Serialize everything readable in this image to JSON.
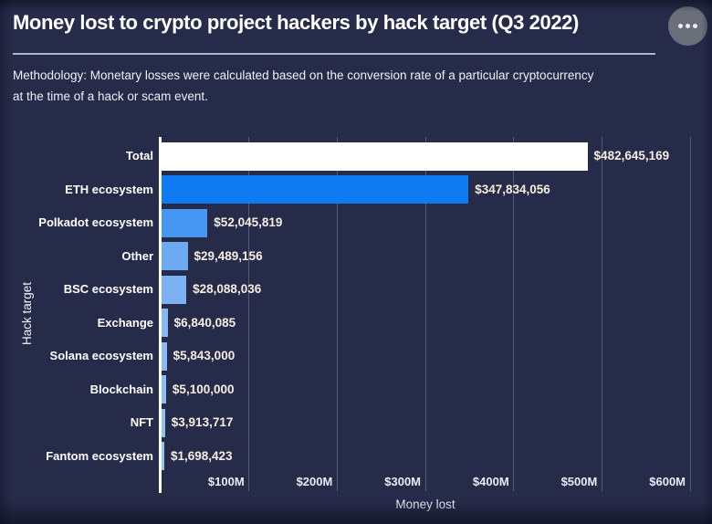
{
  "header": {
    "title": "Money lost to crypto project hackers by hack target (Q3 2022)",
    "menu_icon": "ellipsis-menu",
    "methodology_line1": "Methodology: Monetary losses were calculated based on the conversion rate of a particular cryptocurrency",
    "methodology_line2": "at the time of a hack or scam event."
  },
  "chart_data": {
    "type": "bar",
    "orientation": "horizontal",
    "title": "Money lost to crypto project hackers by hack target (Q3 2022)",
    "xlabel": "Money lost",
    "ylabel": "Hack target",
    "xlim": [
      0,
      600000000
    ],
    "grid": "vertical-only",
    "legend": "none",
    "categories": [
      "Total",
      "ETH ecosystem",
      "Polkadot ecosystem",
      "Other",
      "BSC ecosystem",
      "Exchange",
      "Solana ecosystem",
      "Blockchain",
      "NFT",
      "Fantom ecosystem"
    ],
    "values": [
      482645169,
      347834056,
      52045819,
      29489156,
      28088036,
      6840085,
      5843000,
      5100000,
      3913717,
      1698423
    ],
    "value_labels": [
      "$482,645,169",
      "$347,834,056",
      "$52,045,819",
      "$29,489,156",
      "$28,088,036",
      "$6,840,085",
      "$5,843,000",
      "$5,100,000",
      "$3,913,717",
      "$1,698,423"
    ],
    "bar_colors": [
      "#ffffff",
      "#0e7bf3",
      "#4697f4",
      "#6caaf3",
      "#7db2f2",
      "#85b8f4",
      "#89baf5",
      "#8dbdf5",
      "#91c0f6",
      "#96c3f7"
    ],
    "x_ticks": [
      {
        "label": "$100M",
        "value": 100000000
      },
      {
        "label": "$200M",
        "value": 200000000
      },
      {
        "label": "$300M",
        "value": 300000000
      },
      {
        "label": "$400M",
        "value": 400000000
      },
      {
        "label": "$500M",
        "value": 500000000
      },
      {
        "label": "$600M",
        "value": 600000000
      }
    ]
  },
  "colors": {
    "background": "#272b4a",
    "title_text": "#ffffff",
    "accent_bar_blue": "#0e7bf3",
    "light_bar_blue": "#85b8f4",
    "total_bar": "#ffffff",
    "value_label_text": "#f4eee1",
    "gridline": "#ffffff",
    "menu_button": "#6b6f7a"
  }
}
